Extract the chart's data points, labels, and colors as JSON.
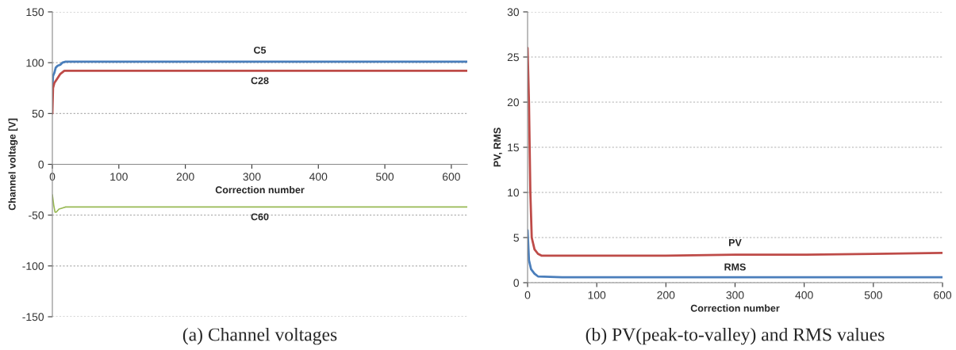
{
  "chart_data": [
    {
      "type": "line",
      "title": "(a) Channel voltages",
      "xlabel": "Correction number",
      "ylabel": "Channel voltage [V]",
      "xlim": [
        0,
        624
      ],
      "xticks": [
        0,
        100,
        200,
        300,
        400,
        500,
        600
      ],
      "ylim": [
        -150,
        150
      ],
      "yticks": [
        -150,
        -100,
        -50,
        0,
        50,
        100,
        150
      ],
      "grid": "y",
      "legend": false,
      "series": [
        {
          "name": "C5",
          "color": "#4a7ebb",
          "x": [
            0,
            1,
            3,
            5,
            8,
            12,
            15,
            20,
            624
          ],
          "values": [
            75,
            87,
            90,
            95,
            97,
            98,
            100,
            101,
            101
          ]
        },
        {
          "name": "C28",
          "color": "#be4b48",
          "x": [
            0,
            1,
            3,
            8,
            12,
            18,
            624
          ],
          "values": [
            50,
            75,
            80,
            85,
            89,
            92,
            92
          ]
        },
        {
          "name": "C60",
          "color": "#98b954",
          "x": [
            0,
            2,
            4,
            6,
            10,
            15,
            20,
            624
          ],
          "values": [
            -30,
            -40,
            -47,
            -47,
            -44,
            -43,
            -42,
            -42
          ]
        }
      ]
    },
    {
      "type": "line",
      "title": "(b) PV(peak-to-valley) and RMS values",
      "xlabel": "Correction number",
      "ylabel": "PV, RMS",
      "xlim": [
        0,
        600
      ],
      "xticks": [
        0,
        100,
        200,
        300,
        400,
        500,
        600
      ],
      "ylim": [
        0,
        30
      ],
      "yticks": [
        0,
        5,
        10,
        15,
        20,
        25,
        30
      ],
      "grid": "y",
      "legend": false,
      "series": [
        {
          "name": "PV",
          "color": "#be4b48",
          "x": [
            0,
            2,
            4,
            6,
            10,
            15,
            20,
            50,
            100,
            150,
            200,
            300,
            400,
            500,
            600
          ],
          "values": [
            26,
            20,
            10,
            5,
            3.7,
            3.2,
            3.0,
            3.0,
            3.0,
            3.0,
            3.0,
            3.1,
            3.1,
            3.2,
            3.3
          ]
        },
        {
          "name": "RMS",
          "color": "#4a7ebb",
          "x": [
            0,
            2,
            5,
            10,
            15,
            50,
            600
          ],
          "values": [
            5.8,
            2.5,
            1.5,
            1.0,
            0.7,
            0.6,
            0.6
          ]
        }
      ]
    }
  ]
}
